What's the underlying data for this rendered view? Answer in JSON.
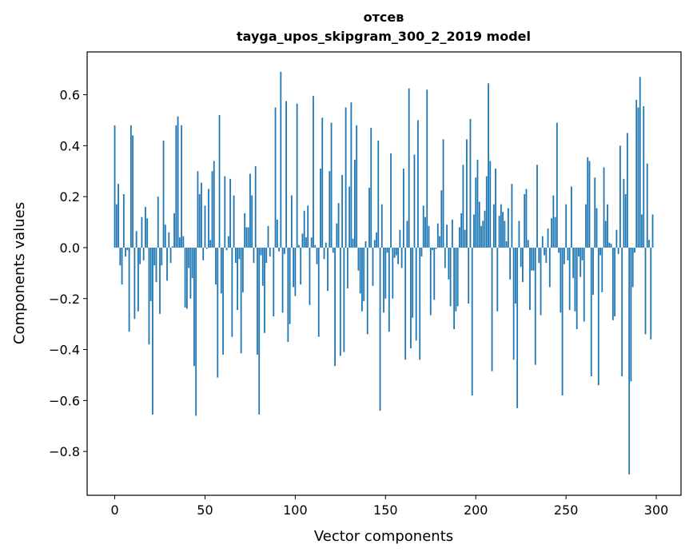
{
  "chart_data": {
    "type": "bar",
    "title": "отсев",
    "subtitle": "tayga_upos_skipgram_300_2_2019 model",
    "xlabel": "Vector components",
    "ylabel": "Components values",
    "xlim": [
      -15.3,
      313.7
    ],
    "ylim": [
      -0.972,
      0.768
    ],
    "xticks": [
      0,
      50,
      100,
      150,
      200,
      250,
      300
    ],
    "xtick_labels": [
      "0",
      "50",
      "100",
      "150",
      "200",
      "250",
      "300"
    ],
    "yticks": [
      -0.8,
      -0.6,
      -0.4,
      -0.2,
      0.0,
      0.2,
      0.4,
      0.6
    ],
    "ytick_labels": [
      "−0.8",
      "−0.6",
      "−0.4",
      "−0.2",
      "0.0",
      "0.2",
      "0.4",
      "0.6"
    ],
    "grid": false,
    "bar_color": "#1f77b4",
    "values": [
      0.48,
      0.17,
      0.25,
      -0.07,
      -0.145,
      0.21,
      -0.035,
      -0.01,
      -0.33,
      0.48,
      0.44,
      -0.28,
      0.065,
      -0.25,
      -0.065,
      0.12,
      -0.05,
      0.16,
      0.115,
      -0.38,
      -0.21,
      -0.655,
      -0.07,
      -0.135,
      0.2,
      -0.26,
      -0.07,
      0.42,
      0.09,
      -0.13,
      0.06,
      -0.06,
      0.005,
      0.135,
      0.48,
      0.515,
      0.04,
      0.48,
      0.045,
      -0.235,
      -0.24,
      -0.08,
      -0.2,
      -0.12,
      -0.465,
      -0.66,
      0.3,
      0.21,
      0.255,
      -0.05,
      0.165,
      -0.005,
      0.23,
      0.03,
      0.3,
      0.34,
      -0.145,
      -0.51,
      0.52,
      -0.18,
      -0.42,
      0.28,
      -0.01,
      0.045,
      0.27,
      -0.35,
      0.205,
      -0.06,
      -0.245,
      -0.045,
      -0.415,
      -0.175,
      0.135,
      0.08,
      0.08,
      0.29,
      0.205,
      -0.06,
      0.32,
      -0.42,
      -0.655,
      -0.03,
      -0.15,
      -0.335,
      -0.06,
      0.085,
      -0.035,
      0.0,
      -0.27,
      0.55,
      0.11,
      -0.015,
      0.69,
      -0.255,
      -0.025,
      0.575,
      -0.37,
      -0.3,
      0.205,
      -0.155,
      -0.19,
      0.565,
      0.01,
      -0.145,
      0.055,
      0.145,
      0.04,
      0.165,
      -0.225,
      0.04,
      0.595,
      0.01,
      -0.065,
      -0.35,
      0.31,
      0.51,
      -0.045,
      0.02,
      -0.17,
      0.3,
      0.49,
      -0.02,
      -0.465,
      0.095,
      0.175,
      -0.425,
      0.285,
      -0.41,
      0.55,
      -0.16,
      0.24,
      0.57,
      0.035,
      0.345,
      0.48,
      -0.09,
      -0.18,
      -0.25,
      -0.21,
      0.025,
      -0.34,
      0.235,
      0.47,
      -0.15,
      0.03,
      0.06,
      0.42,
      -0.64,
      0.17,
      -0.255,
      -0.2,
      -0.02,
      -0.33,
      0.37,
      -0.2,
      -0.04,
      -0.03,
      -0.065,
      0.07,
      -0.08,
      0.31,
      -0.44,
      0.105,
      0.625,
      -0.395,
      -0.275,
      0.365,
      -0.365,
      0.5,
      -0.44,
      -0.035,
      0.165,
      0.12,
      0.62,
      0.085,
      -0.265,
      -0.01,
      -0.205,
      -0.005,
      0.095,
      0.045,
      0.225,
      0.425,
      -0.08,
      0.09,
      -0.125,
      -0.23,
      0.11,
      -0.32,
      -0.25,
      -0.23,
      0.08,
      0.135,
      0.325,
      0.07,
      0.425,
      -0.22,
      0.505,
      -0.58,
      0.13,
      0.275,
      0.345,
      0.18,
      0.085,
      0.105,
      0.145,
      0.28,
      0.645,
      0.34,
      -0.485,
      0.17,
      0.31,
      -0.25,
      0.125,
      0.17,
      0.14,
      0.105,
      0.025,
      0.155,
      -0.125,
      0.25,
      -0.44,
      -0.22,
      -0.63,
      0.105,
      -0.075,
      -0.135,
      0.21,
      0.23,
      0.03,
      -0.245,
      -0.09,
      -0.09,
      -0.46,
      0.325,
      -0.06,
      -0.265,
      0.045,
      -0.03,
      -0.06,
      0.075,
      -0.155,
      0.115,
      0.205,
      0.12,
      0.49,
      -0.02,
      -0.255,
      -0.58,
      -0.065,
      0.17,
      -0.05,
      -0.245,
      0.24,
      -0.12,
      -0.25,
      -0.32,
      -0.035,
      -0.115,
      -0.05,
      -0.29,
      0.17,
      0.355,
      0.34,
      -0.505,
      -0.185,
      0.275,
      0.155,
      -0.54,
      -0.03,
      -0.175,
      0.315,
      0.105,
      0.17,
      0.02,
      0.015,
      -0.285,
      -0.27,
      0.07,
      -0.025,
      0.4,
      -0.505,
      0.27,
      0.21,
      0.45,
      -0.89,
      -0.525,
      -0.155,
      -0.02,
      0.58,
      0.55,
      0.67,
      0.13,
      0.555,
      -0.34,
      0.33,
      0.03,
      -0.36,
      0.13
    ]
  }
}
